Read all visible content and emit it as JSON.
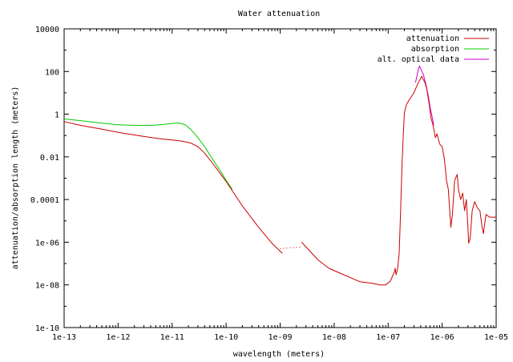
{
  "chart_data": {
    "type": "line",
    "title": "Water attenuation",
    "xlabel": "wavelength (meters)",
    "ylabel": "attenuation/absorption length (meters)",
    "x_scale": "log",
    "y_scale": "log",
    "xlim": [
      1e-13,
      1e-05
    ],
    "ylim": [
      1e-10,
      10000
    ],
    "x_ticks": [
      {
        "value": 1e-13,
        "label": "1e-13"
      },
      {
        "value": 1e-12,
        "label": "1e-12"
      },
      {
        "value": 1e-11,
        "label": "1e-11"
      },
      {
        "value": 1e-10,
        "label": "1e-10"
      },
      {
        "value": 1e-09,
        "label": "1e-09"
      },
      {
        "value": 1e-08,
        "label": "1e-08"
      },
      {
        "value": 1e-07,
        "label": "1e-07"
      },
      {
        "value": 1e-06,
        "label": "1e-06"
      },
      {
        "value": 1e-05,
        "label": "1e-05"
      }
    ],
    "y_ticks": [
      {
        "value": 10000,
        "label": "10000"
      },
      {
        "value": 100,
        "label": "100"
      },
      {
        "value": 1,
        "label": "1"
      },
      {
        "value": 0.01,
        "label": "0.01"
      },
      {
        "value": 0.0001,
        "label": "0.0001"
      },
      {
        "value": 1e-06,
        "label": "1e-06"
      },
      {
        "value": 1e-08,
        "label": "1e-08"
      },
      {
        "value": 1e-10,
        "label": "1e-10"
      }
    ],
    "grid": false,
    "legend_position": "top-right",
    "series": [
      {
        "name": "attenuation",
        "color": "#cc0000",
        "segments": [
          [
            [
              1e-13,
              0.45
            ],
            [
              2e-13,
              0.3
            ],
            [
              5e-13,
              0.2
            ],
            [
              1e-12,
              0.14
            ],
            [
              3e-12,
              0.09
            ],
            [
              6e-12,
              0.07
            ],
            [
              1e-11,
              0.062
            ],
            [
              1.5e-11,
              0.055
            ],
            [
              2.2e-11,
              0.045
            ],
            [
              3e-11,
              0.03
            ],
            [
              4e-11,
              0.015
            ],
            [
              6e-11,
              0.004
            ],
            [
              8e-11,
              0.0015
            ],
            [
              1e-10,
              0.0007
            ],
            [
              2e-10,
              5e-05
            ],
            [
              4e-10,
              5e-06
            ],
            [
              7e-10,
              9e-07
            ],
            [
              1.1e-09,
              3e-07
            ]
          ],
          [
            [
              2.5e-09,
              1e-06
            ],
            [
              5e-09,
              1.5e-07
            ],
            [
              8e-09,
              6e-08
            ],
            [
              1.5e-08,
              3e-08
            ],
            [
              3e-08,
              1.4e-08
            ],
            [
              5e-08,
              1.2e-08
            ],
            [
              7e-08,
              1e-08
            ],
            [
              9e-08,
              1e-08
            ],
            [
              1.1e-07,
              1.5e-08
            ],
            [
              1.3e-07,
              4e-08
            ],
            [
              1.35e-07,
              6e-08
            ],
            [
              1.4e-07,
              3e-08
            ],
            [
              1.5e-07,
              6e-08
            ],
            [
              1.6e-07,
              3e-07
            ],
            [
              1.7e-07,
              3e-05
            ],
            [
              1.8e-07,
              0.003
            ],
            [
              1.9e-07,
              0.08
            ],
            [
              2e-07,
              1.2
            ],
            [
              2.2e-07,
              3
            ],
            [
              2.5e-07,
              5
            ],
            [
              3e-07,
              10
            ],
            [
              3.5e-07,
              25
            ],
            [
              4.2e-07,
              60
            ],
            [
              4.8e-07,
              30
            ],
            [
              5.2e-07,
              15
            ],
            [
              5.8e-07,
              2.5
            ],
            [
              6.2e-07,
              0.7
            ],
            [
              6.8e-07,
              0.3
            ],
            [
              7.5e-07,
              0.08
            ],
            [
              8e-07,
              0.12
            ],
            [
              9e-07,
              0.04
            ],
            [
              1e-06,
              0.03
            ],
            [
              1.1e-06,
              0.008
            ],
            [
              1.2e-06,
              0.0008
            ],
            [
              1.3e-06,
              0.0003
            ],
            [
              1.45e-06,
              5e-06
            ],
            [
              1.55e-06,
              2e-05
            ],
            [
              1.7e-06,
              0.0008
            ],
            [
              1.9e-06,
              0.0015
            ],
            [
              2e-06,
              0.0003
            ],
            [
              2.2e-06,
              0.0001
            ],
            [
              2.4e-06,
              0.0002
            ],
            [
              2.6e-06,
              3e-05
            ],
            [
              2.8e-06,
              0.0001
            ],
            [
              3e-06,
              5e-06
            ],
            [
              3.1e-06,
              9e-07
            ],
            [
              3.3e-06,
              1.5e-06
            ],
            [
              3.6e-06,
              3e-05
            ],
            [
              4e-06,
              8e-05
            ],
            [
              4.5e-06,
              4e-05
            ],
            [
              5e-06,
              3e-05
            ],
            [
              5.5e-06,
              5e-06
            ],
            [
              5.8e-06,
              2.5e-06
            ],
            [
              6e-06,
              5e-06
            ],
            [
              6.5e-06,
              2e-05
            ],
            [
              7.5e-06,
              1.5e-05
            ],
            [
              9e-06,
              1.5e-05
            ],
            [
              1e-05,
              1.5e-05
            ]
          ]
        ],
        "dotted_segment": [
          [
            1e-09,
            5e-07
          ],
          [
            2.5e-09,
            6e-07
          ]
        ]
      },
      {
        "name": "absorption",
        "color": "#00cc00",
        "segments": [
          [
            [
              1e-13,
              0.6
            ],
            [
              2e-13,
              0.5
            ],
            [
              5e-13,
              0.38
            ],
            [
              1e-12,
              0.32
            ],
            [
              2e-12,
              0.3
            ],
            [
              4e-12,
              0.3
            ],
            [
              7e-12,
              0.33
            ],
            [
              1e-11,
              0.37
            ],
            [
              1.3e-11,
              0.39
            ],
            [
              1.7e-11,
              0.33
            ],
            [
              2.2e-11,
              0.2
            ],
            [
              3e-11,
              0.08
            ],
            [
              4e-11,
              0.03
            ],
            [
              6e-11,
              0.006
            ],
            [
              8e-11,
              0.002
            ],
            [
              1e-10,
              0.0008
            ],
            [
              1.3e-10,
              0.0003
            ]
          ]
        ]
      },
      {
        "name": "alt. optical data",
        "color": "#cc00cc",
        "segments": [
          [
            [
              3.2e-07,
              30
            ],
            [
              3.4e-07,
              60
            ],
            [
              3.6e-07,
              120
            ],
            [
              3.8e-07,
              180
            ],
            [
              4.1e-07,
              120
            ],
            [
              4.5e-07,
              70
            ],
            [
              5e-07,
              25
            ],
            [
              5.5e-07,
              8
            ],
            [
              6e-07,
              2
            ],
            [
              6.5e-07,
              0.8
            ],
            [
              7e-07,
              0.3
            ]
          ]
        ]
      }
    ]
  }
}
